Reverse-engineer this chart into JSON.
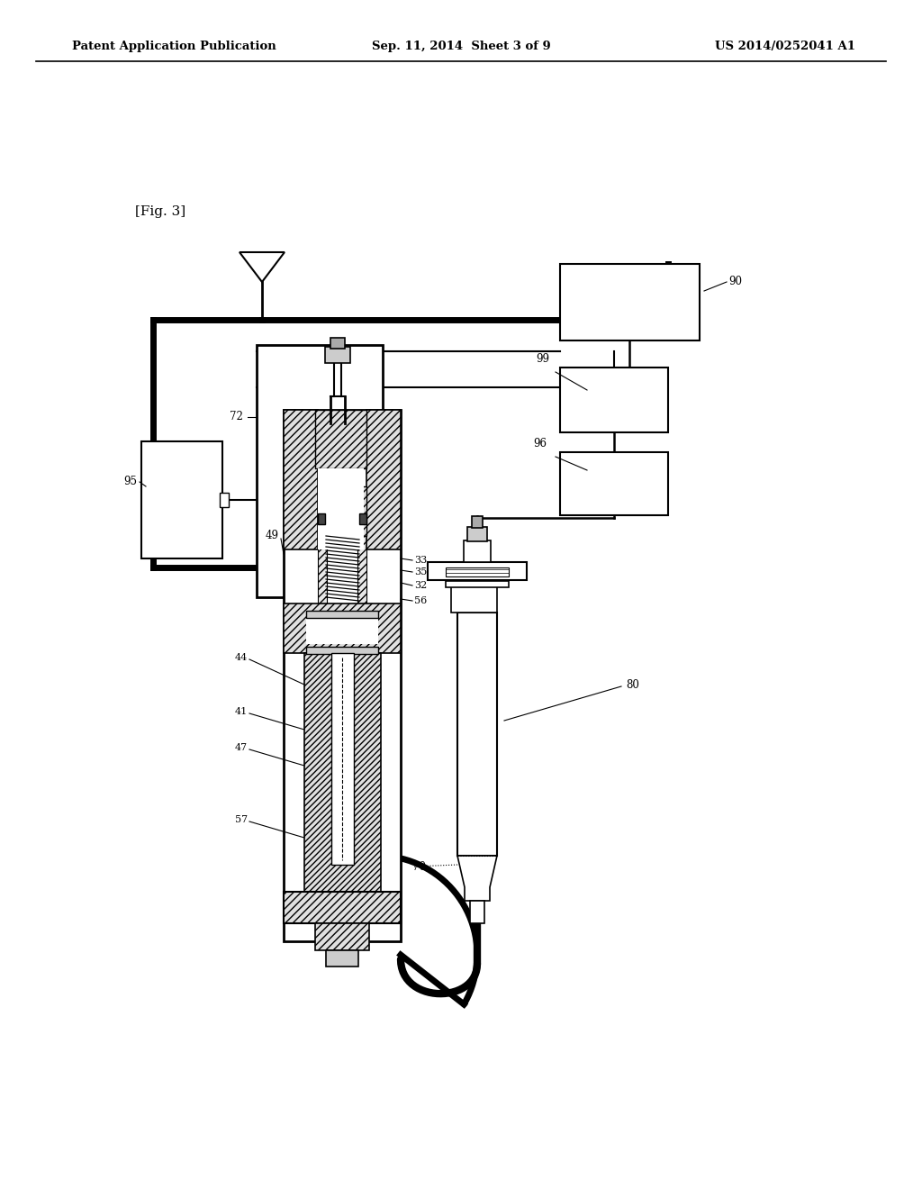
{
  "bg_color": "#ffffff",
  "header_left": "Patent Application Publication",
  "header_mid": "Sep. 11, 2014  Sheet 3 of 9",
  "header_right": "US 2014/0252041 A1",
  "fig_label": "[Fig. 3]",
  "line_color": "#000000"
}
